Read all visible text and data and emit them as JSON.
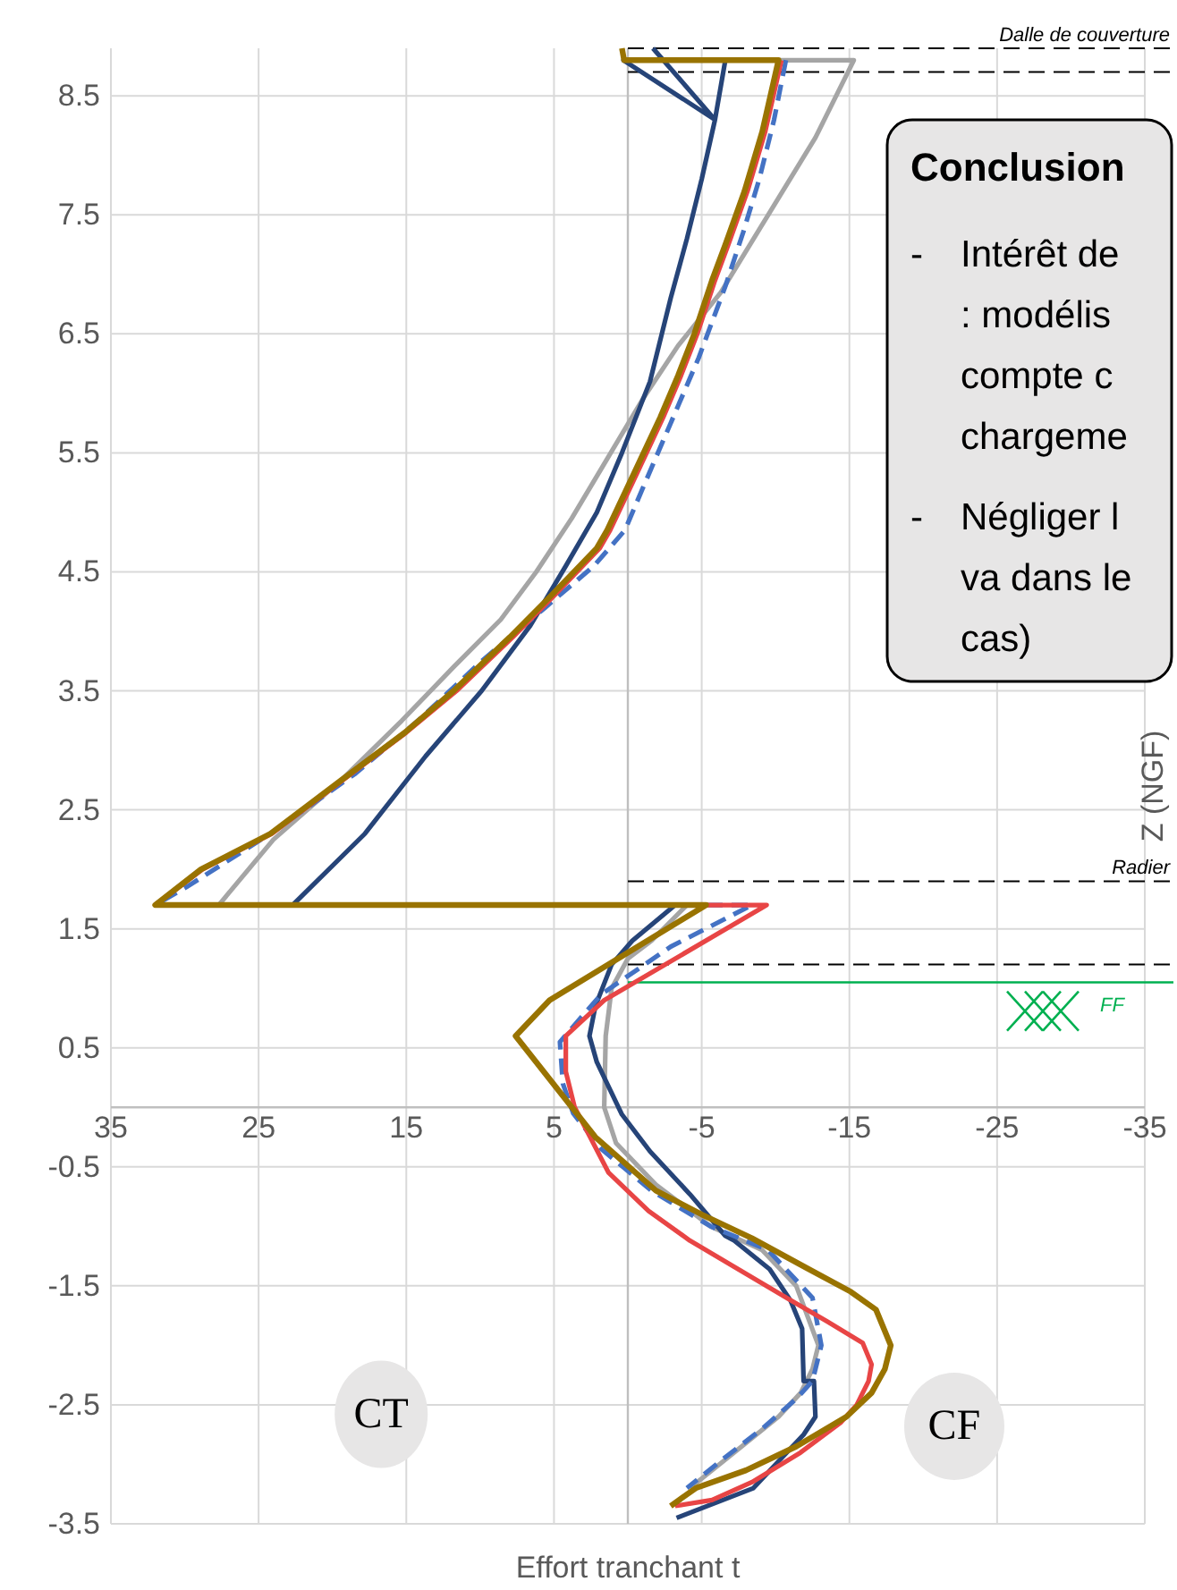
{
  "chart_data": {
    "type": "line",
    "xlabel": "Effort tranchant t",
    "ylabel": "Z (NGF)",
    "xlim": [
      35,
      -35
    ],
    "xticks": [
      35,
      25,
      15,
      5,
      -5,
      -15,
      -25,
      -35
    ],
    "ylim": [
      -3.5,
      8.9
    ],
    "yticks": [
      -3.5,
      -2.5,
      -1.5,
      -0.5,
      0.5,
      1.5,
      2.5,
      3.5,
      4.5,
      5.5,
      6.5,
      7.5,
      8.5
    ],
    "grid": true,
    "line_style": "solid",
    "series": [
      {
        "color": "#a5a5a5",
        "x": [
          -10.2,
          -15.3,
          -12.7,
          -9.5,
          -6.3,
          -3.4,
          -1.0,
          1.4,
          3.8,
          6.2,
          8.6,
          11.8,
          15.3,
          19.4,
          24.0,
          27.7,
          -4.0,
          -1.6,
          0.0,
          1.1,
          1.5,
          1.6,
          0.8,
          -1.9,
          -5.6,
          -9.1,
          -11.4,
          -12.3,
          -12.9,
          -12.5,
          -11.7,
          -10.2,
          -7.2,
          -4.2
        ],
        "values": [
          8.8,
          8.8,
          8.15,
          7.5,
          6.85,
          6.4,
          5.95,
          5.45,
          4.95,
          4.5,
          4.1,
          3.7,
          3.25,
          2.75,
          2.25,
          1.7,
          1.7,
          1.4,
          1.25,
          1.0,
          0.6,
          0.0,
          -0.3,
          -0.65,
          -1.0,
          -1.2,
          -1.5,
          -1.8,
          -2.0,
          -2.2,
          -2.4,
          -2.6,
          -2.9,
          -3.2
        ]
      },
      {
        "color": "#264478",
        "x": [
          -1.7,
          -5.9,
          -6.6,
          0.3,
          -5.9,
          -5.0,
          -4.0,
          -2.9,
          -1.5,
          0.4,
          2.1,
          4.2,
          6.6,
          9.9,
          13.7,
          17.8,
          22.7,
          -3.2,
          -0.3,
          1.1,
          2.2,
          2.6,
          2.1,
          0.4,
          -1.5,
          -4.2,
          -6.6,
          -7.2,
          -9.6,
          -11.0,
          -11.8,
          -11.9,
          -12.6,
          -12.7,
          -11.9,
          -8.5,
          -3.3
        ],
        "values": [
          8.9,
          8.3,
          8.8,
          8.8,
          8.3,
          7.8,
          7.3,
          6.8,
          6.1,
          5.5,
          5.0,
          4.55,
          4.05,
          3.5,
          2.95,
          2.3,
          1.7,
          1.7,
          1.4,
          1.2,
          0.85,
          0.6,
          0.38,
          -0.06,
          -0.37,
          -0.73,
          -1.08,
          -1.12,
          -1.36,
          -1.62,
          -1.86,
          -2.3,
          -2.3,
          -2.6,
          -2.75,
          -3.2,
          -3.45
        ]
      },
      {
        "color": "#4472c4",
        "line_style": "dashed",
        "x": [
          -10.7,
          -9.9,
          -8.9,
          -7.8,
          -6.6,
          -4.8,
          -2.9,
          -1.0,
          0.2,
          2.3,
          5.6,
          9.9,
          14.2,
          18.5,
          24.2,
          29.9,
          32.0,
          -8.4,
          -2.9,
          1.8,
          4.6,
          4.4,
          3.7,
          1.8,
          -1.6,
          -5.6,
          -9.5,
          -12.5,
          -13.1,
          -12.5,
          -11.4,
          -9.1,
          -6.5,
          -4.0
        ],
        "values": [
          8.8,
          8.3,
          7.8,
          7.35,
          6.9,
          6.3,
          5.75,
          5.2,
          4.85,
          4.55,
          4.2,
          3.75,
          3.25,
          2.8,
          2.3,
          1.85,
          1.7,
          1.7,
          1.35,
          0.95,
          0.55,
          0.2,
          -0.05,
          -0.35,
          -0.7,
          -1.0,
          -1.2,
          -1.6,
          -2.0,
          -2.3,
          -2.45,
          -2.7,
          -2.95,
          -3.2
        ]
      },
      {
        "color": "#e84545",
        "x": [
          -10.4,
          -9.3,
          -8.1,
          -6.8,
          -5.9,
          -4.7,
          -3.6,
          -2.4,
          -0.7,
          1.2,
          1.9,
          5.0,
          7.8,
          11.6,
          15.0,
          19.3,
          24.1,
          28.8,
          32.0,
          -9.4,
          1.6,
          4.2,
          4.2,
          3.6,
          1.3,
          -1.4,
          -4.2,
          -7.6,
          -11.0,
          -13.5,
          -15.9,
          -16.5,
          -16.3,
          -15.5,
          -14.4,
          -11.7,
          -8.4,
          -5.7,
          -3.2
        ],
        "values": [
          8.8,
          8.2,
          7.7,
          7.25,
          6.95,
          6.5,
          6.15,
          5.8,
          5.35,
          4.85,
          4.7,
          4.3,
          3.95,
          3.5,
          3.15,
          2.75,
          2.3,
          2.0,
          1.7,
          1.7,
          0.9,
          0.6,
          0.3,
          0.0,
          -0.55,
          -0.87,
          -1.12,
          -1.37,
          -1.62,
          -1.8,
          -1.98,
          -2.16,
          -2.3,
          -2.5,
          -2.65,
          -2.9,
          -3.15,
          -3.3,
          -3.35
        ]
      },
      {
        "color": "#997300",
        "x": [
          0.4,
          0.25,
          -10.2,
          -9.1,
          -7.9,
          -6.6,
          -5.7,
          -4.5,
          -3.4,
          -2.2,
          -0.5,
          1.4,
          2.1,
          5.2,
          8.0,
          11.8,
          15.1,
          19.4,
          24.2,
          28.9,
          32.0,
          -5.3,
          0.0,
          5.3,
          7.6,
          2.2,
          -1.9,
          -5.0,
          -8.4,
          -12.1,
          -15.1,
          -16.8,
          -17.8,
          -17.4,
          -16.5,
          -14.8,
          -11.4,
          -8.0,
          -4.6,
          -2.9
        ],
        "values": [
          8.9,
          8.8,
          8.8,
          8.2,
          7.7,
          7.25,
          6.95,
          6.5,
          6.15,
          5.8,
          5.35,
          4.85,
          4.7,
          4.3,
          3.95,
          3.5,
          3.15,
          2.75,
          2.3,
          2.0,
          1.7,
          1.7,
          1.3,
          0.9,
          0.6,
          -0.25,
          -0.7,
          -0.9,
          -1.1,
          -1.35,
          -1.55,
          -1.7,
          -2.0,
          -2.2,
          -2.4,
          -2.6,
          -2.85,
          -3.05,
          -3.2,
          -3.35
        ]
      }
    ],
    "ref_lines": [
      {
        "axis": "y",
        "value": 8.9,
        "label": "Dalle de couverture",
        "color": "#000000",
        "line_style": "dashed"
      },
      {
        "axis": "y",
        "value": 8.7,
        "color": "#000000",
        "line_style": "dashed"
      },
      {
        "axis": "y",
        "value": 1.9,
        "label": "Radier",
        "color": "#000000",
        "line_style": "dashed"
      },
      {
        "axis": "y",
        "value": 1.2,
        "color": "#000000",
        "line_style": "dashed"
      },
      {
        "axis": "y",
        "value": 1.05,
        "label": "FF",
        "color": "#00b050",
        "line_style": "solid"
      }
    ],
    "annotations": [
      "CT",
      "CF",
      "Conclusion",
      "- Intérêt de\n: modélis\ncompte c\nchargeme",
      "- Négliger l\nva dans le\ncas)"
    ]
  }
}
